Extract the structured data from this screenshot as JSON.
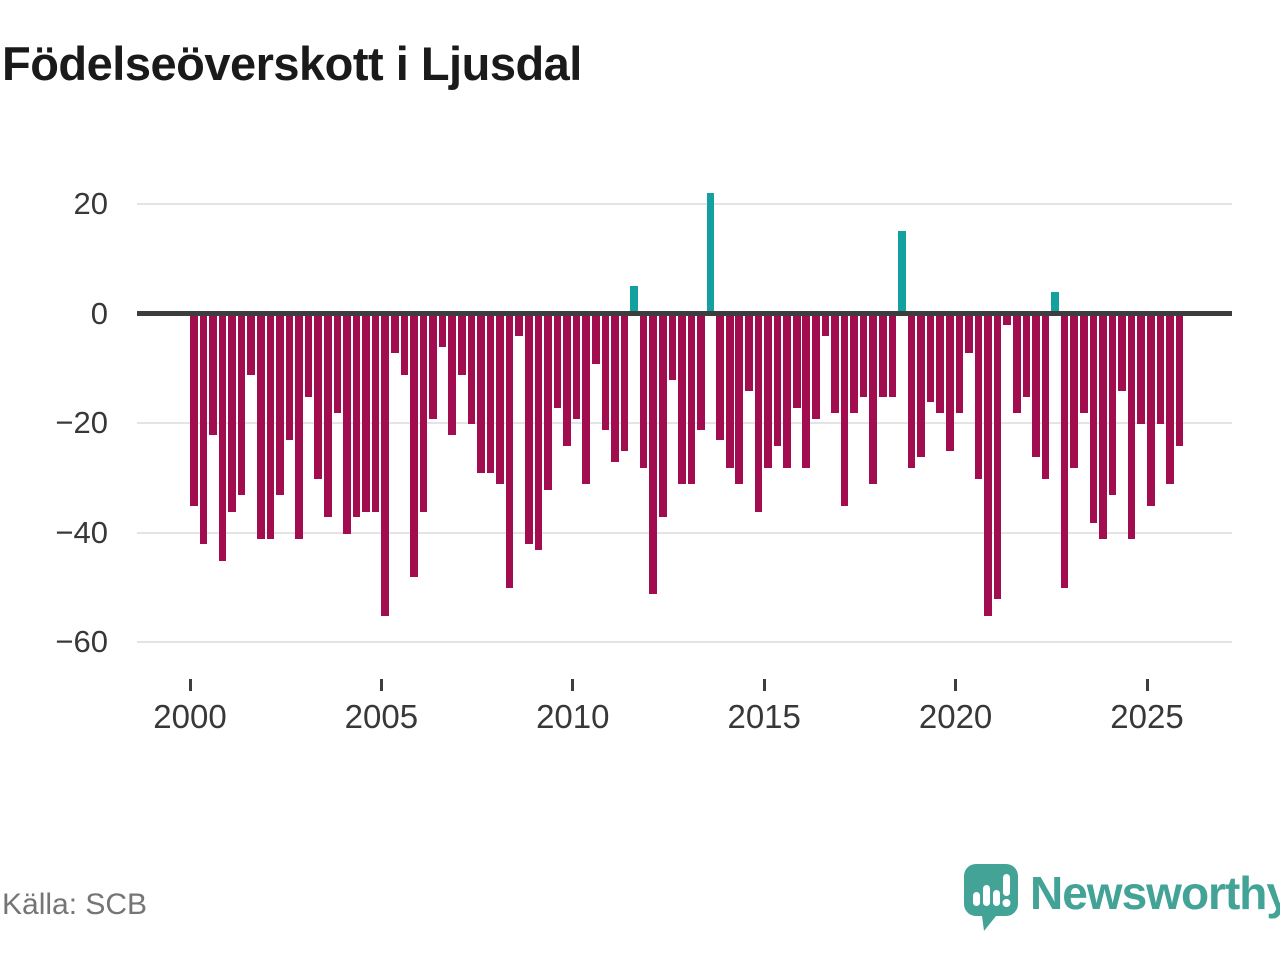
{
  "title": "Födelseöverskott i Ljusdal",
  "source": "Källa: SCB",
  "logo": {
    "text": "Newsworthy"
  },
  "chart_data": {
    "type": "bar",
    "title": "Födelseöverskott i Ljusdal",
    "x_tick_labels": [
      "2000",
      "2005",
      "2010",
      "2015",
      "2020",
      "2025"
    ],
    "y_ticks": [
      20,
      0,
      -20,
      -40,
      -60
    ],
    "y_tick_labels": [
      "20",
      "0",
      "−20",
      "−40",
      "−60"
    ],
    "ylim": [
      -62,
      25
    ],
    "grid": "horizontal",
    "legend": false,
    "bar_period": "quarterly",
    "colors": {
      "negative": "#a10d4f",
      "positive": "#12a19f"
    },
    "series": [
      {
        "year": 2000,
        "quarters": [
          -35,
          -42,
          -22,
          -45
        ]
      },
      {
        "year": 2001,
        "quarters": [
          -36,
          -33,
          -11,
          -41
        ]
      },
      {
        "year": 2002,
        "quarters": [
          -41,
          -33,
          -23,
          -41
        ]
      },
      {
        "year": 2003,
        "quarters": [
          -15,
          -30,
          -37,
          -18
        ]
      },
      {
        "year": 2004,
        "quarters": [
          -40,
          -37,
          -36,
          -36
        ]
      },
      {
        "year": 2005,
        "quarters": [
          -55,
          -7,
          -11,
          -48
        ]
      },
      {
        "year": 2006,
        "quarters": [
          -36,
          -19,
          -6,
          -22
        ]
      },
      {
        "year": 2007,
        "quarters": [
          -11,
          -20,
          -29,
          -29
        ]
      },
      {
        "year": 2008,
        "quarters": [
          -31,
          -50,
          -4,
          -42
        ]
      },
      {
        "year": 2009,
        "quarters": [
          -43,
          -32,
          -17,
          -24
        ]
      },
      {
        "year": 2010,
        "quarters": [
          -19,
          -31,
          -9,
          -21
        ]
      },
      {
        "year": 2011,
        "quarters": [
          -27,
          -25,
          5,
          -28
        ]
      },
      {
        "year": 2012,
        "quarters": [
          -51,
          -37,
          -12,
          -31
        ]
      },
      {
        "year": 2013,
        "quarters": [
          -31,
          -21,
          22,
          -23
        ]
      },
      {
        "year": 2014,
        "quarters": [
          -28,
          -31,
          -14,
          -36
        ]
      },
      {
        "year": 2015,
        "quarters": [
          -28,
          -24,
          -28,
          -17
        ]
      },
      {
        "year": 2016,
        "quarters": [
          -28,
          -19,
          -4,
          -18
        ]
      },
      {
        "year": 2017,
        "quarters": [
          -35,
          -18,
          -15,
          -31
        ]
      },
      {
        "year": 2018,
        "quarters": [
          -15,
          -15,
          15,
          -28
        ]
      },
      {
        "year": 2019,
        "quarters": [
          -26,
          -16,
          -18,
          -25
        ]
      },
      {
        "year": 2020,
        "quarters": [
          -18,
          -7,
          -30,
          -55
        ]
      },
      {
        "year": 2021,
        "quarters": [
          -52,
          -2,
          -18,
          -15
        ]
      },
      {
        "year": 2022,
        "quarters": [
          -26,
          -30,
          4,
          -50
        ]
      },
      {
        "year": 2023,
        "quarters": [
          -28,
          -18,
          -38,
          -41
        ]
      },
      {
        "year": 2024,
        "quarters": [
          -33,
          -14,
          -41,
          -20
        ]
      },
      {
        "year": 2025,
        "quarters": [
          -35,
          -20,
          -31,
          -24
        ]
      }
    ]
  }
}
